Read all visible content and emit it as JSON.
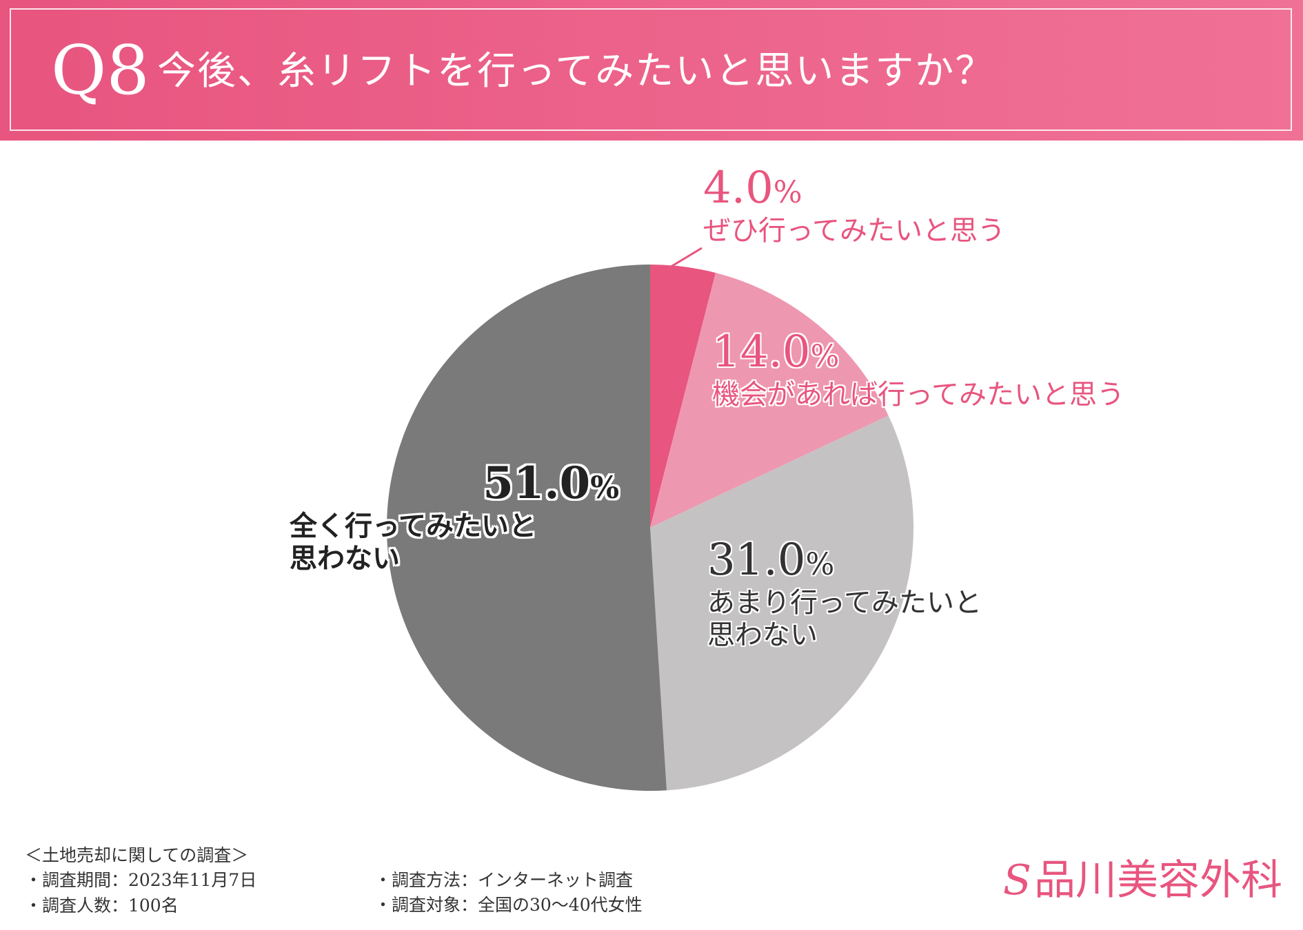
{
  "header": {
    "q_number": "Q8",
    "question": "今後、糸リフトを行ってみたいと思いますか？"
  },
  "chart_data": {
    "type": "pie",
    "start_angle_deg": 0,
    "direction": "clockwise",
    "slices": [
      {
        "label": "ぜひ行ってみたいと思う",
        "value": 4.0,
        "pct_text": "4.0",
        "color": "#e8557f"
      },
      {
        "label": "機会があれば行ってみたいと思う",
        "value": 14.0,
        "pct_text": "14.0",
        "color": "#ee97b1"
      },
      {
        "label_lines": [
          "あまり行ってみたいと",
          "思わない"
        ],
        "value": 31.0,
        "pct_text": "31.0",
        "color": "#c5c2c3"
      },
      {
        "label_lines": [
          "全く行ってみたいと",
          "思わない"
        ],
        "value": 51.0,
        "pct_text": "51.0",
        "color": "#7a7a7a"
      }
    ],
    "unit": "%"
  },
  "footer": {
    "title": "＜土地売却に関しての調査＞",
    "period": "・調査期間：2023年11月7日",
    "people": "・調査人数：100名",
    "method": "・調査方法：インターネット調査",
    "target": "・調査対象：全国の30〜40代女性"
  },
  "brand": {
    "mark": "S",
    "name": "品川美容外科",
    "color": "#e8557f"
  }
}
